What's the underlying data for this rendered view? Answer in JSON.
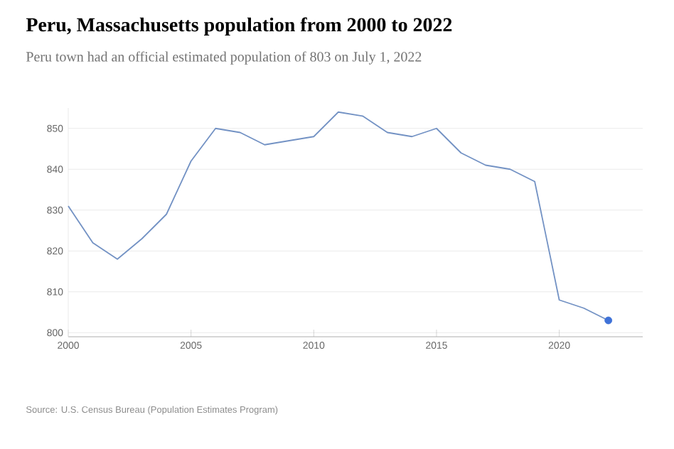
{
  "chart_data": {
    "type": "line",
    "title": "Peru, Massachusetts population from 2000 to 2022",
    "subtitle": "Peru town had an official estimated population of 803 on July 1, 2022",
    "annotations": [
      "Source: U.S. Census Bureau (Population Estimates Program)"
    ],
    "series": [
      {
        "color": "#7392c4",
        "x": [
          2000,
          2001,
          2002,
          2003,
          2004,
          2005,
          2006,
          2007,
          2008,
          2009,
          2010,
          2011,
          2012,
          2013,
          2014,
          2015,
          2016,
          2017,
          2018,
          2019,
          2020,
          2021,
          2022
        ],
        "values": [
          831,
          822,
          818,
          823,
          829,
          842,
          850,
          849,
          846,
          847,
          848,
          854,
          853,
          849,
          848,
          850,
          844,
          841,
          840,
          837,
          808,
          806,
          803
        ]
      },
      {
        "type": "scatter",
        "color": "#3f72d8",
        "marker": "circle",
        "x": [
          2022
        ],
        "values": [
          803
        ]
      }
    ],
    "xlim": [
      2000,
      2023.4
    ],
    "ylim": [
      799,
      855
    ],
    "xticks": [
      2000,
      2005,
      2010,
      2015,
      2020
    ],
    "yticks": [
      800,
      810,
      820,
      830,
      840,
      850
    ],
    "grid": "y"
  }
}
